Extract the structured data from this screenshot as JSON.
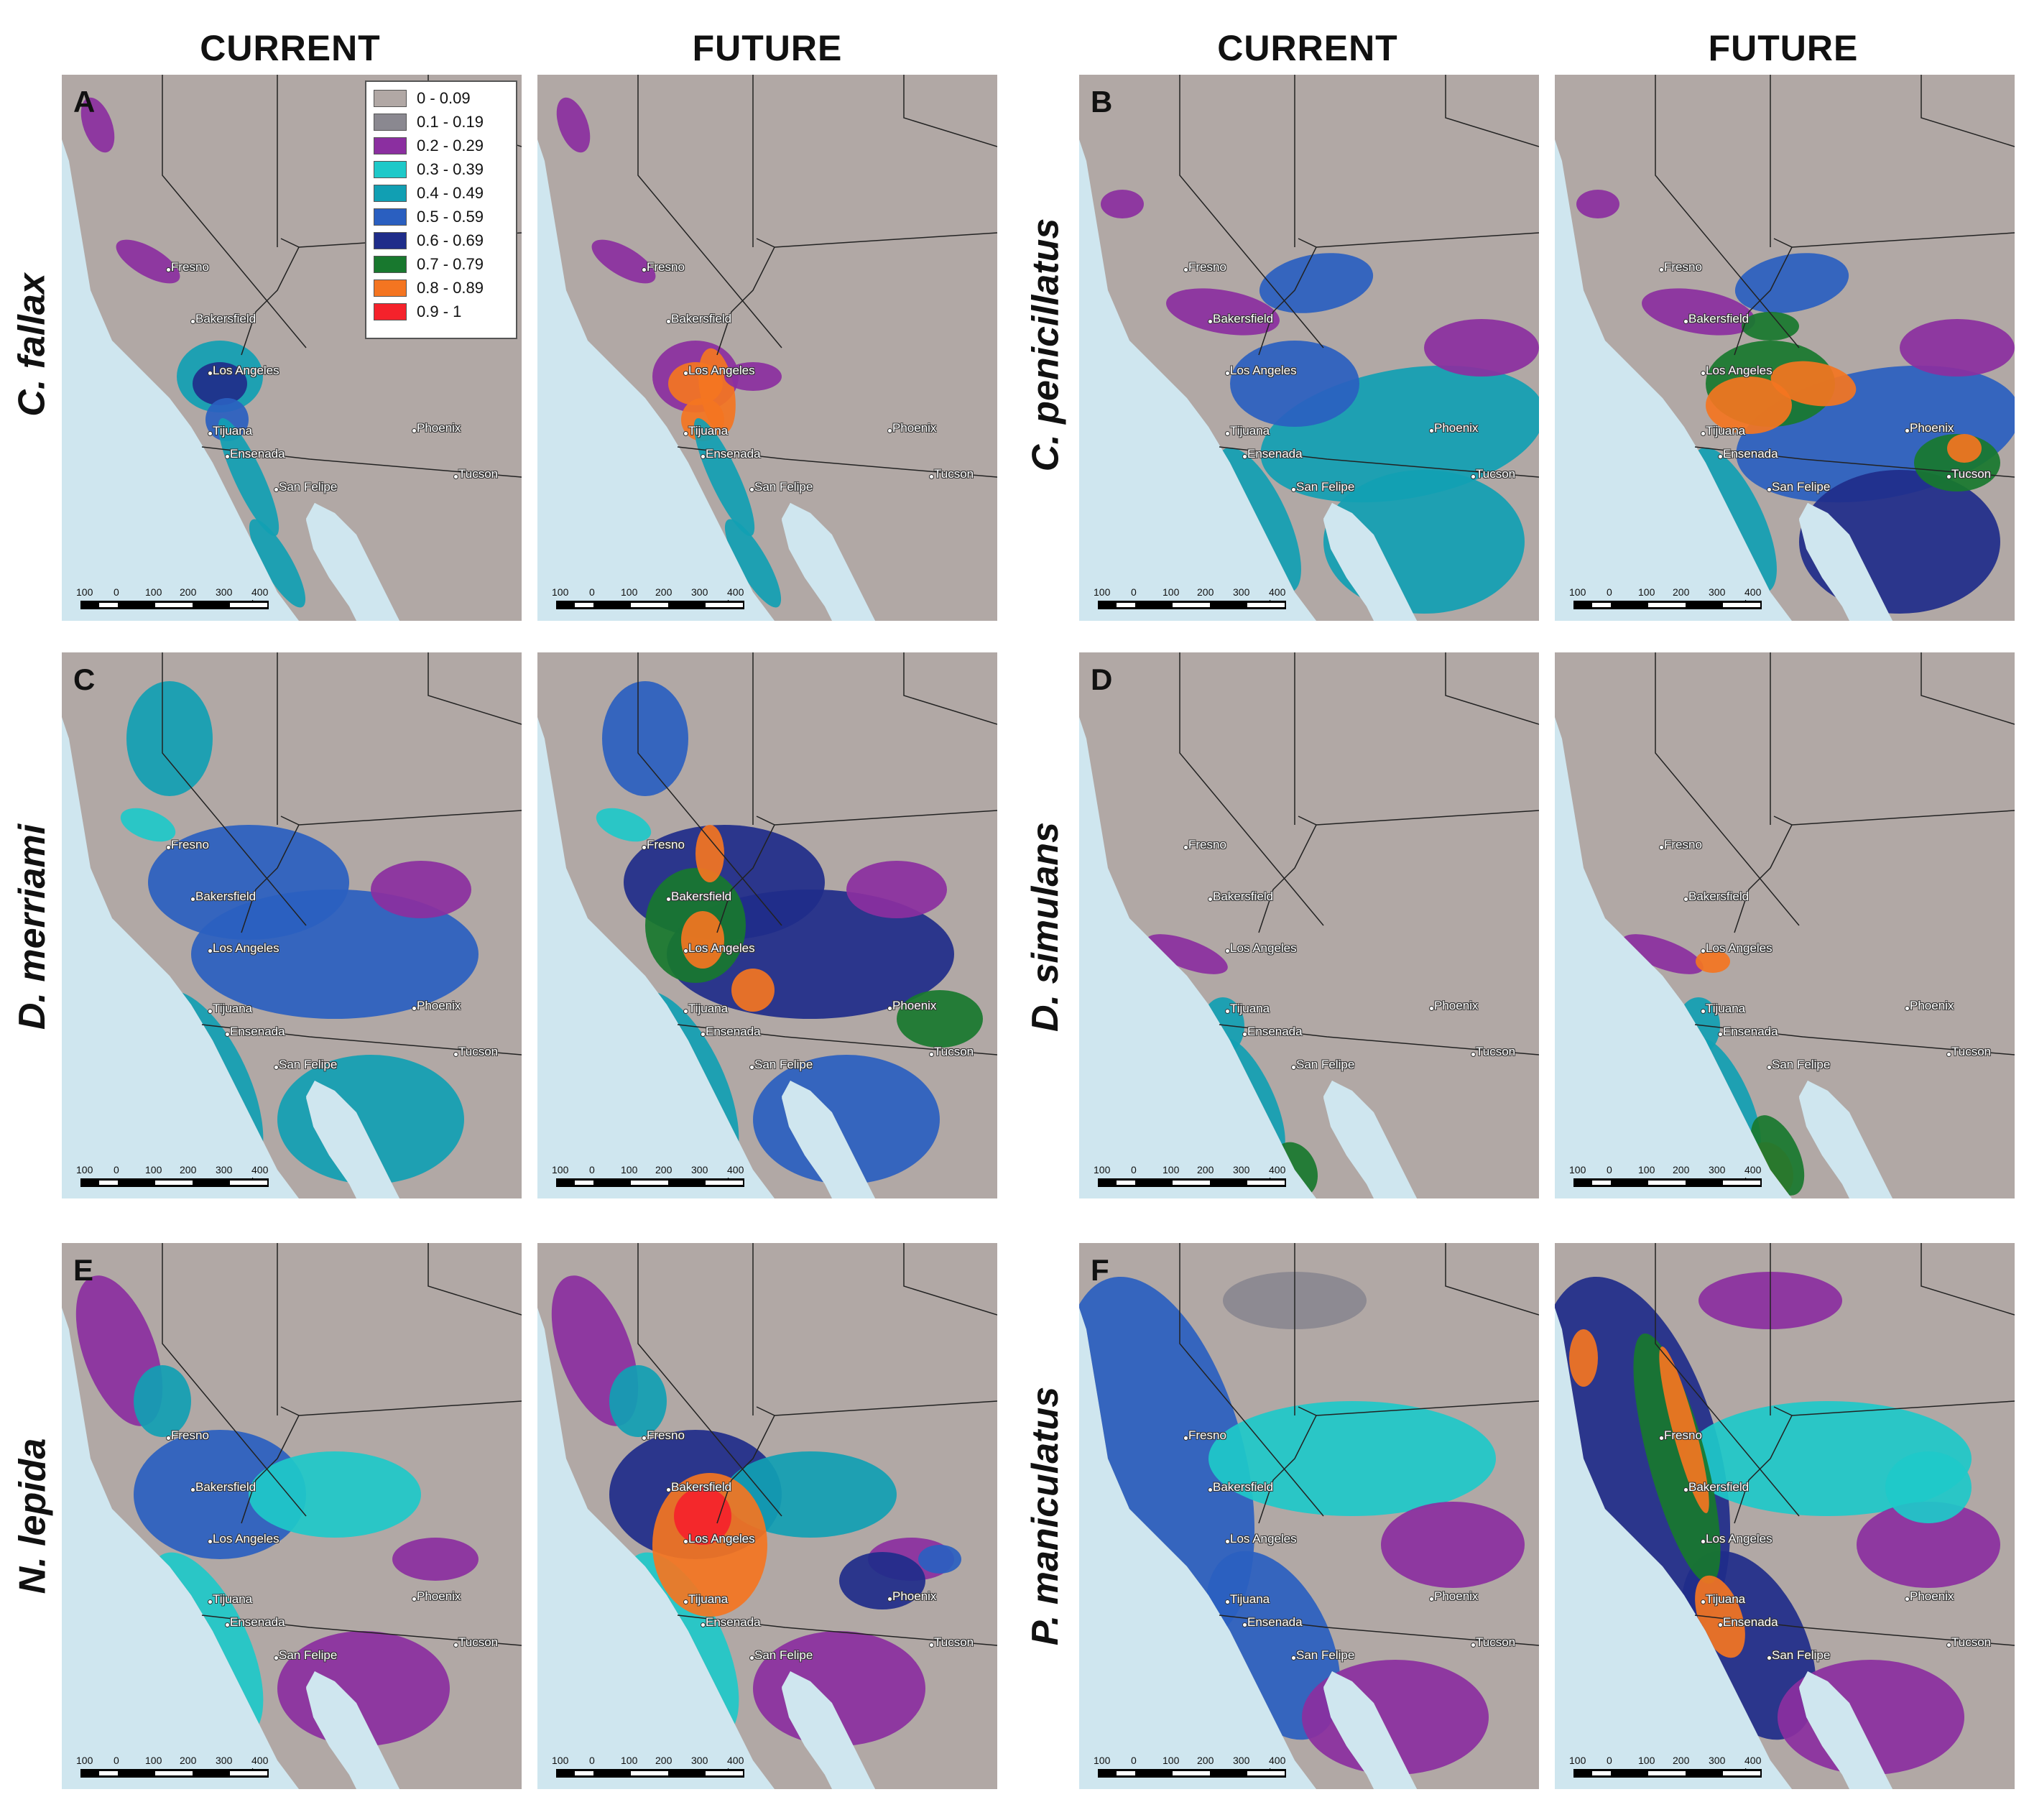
{
  "headers": {
    "current": "CURRENT",
    "future": "FUTURE"
  },
  "species": {
    "c_fallax": "C. fallax",
    "c_penicillatus": "C. penicillatus",
    "d_merriami": "D. merriami",
    "d_simulans": "D. simulans",
    "n_lepida": "N. lepida",
    "p_maniculatus": "P. maniculatus"
  },
  "panel_letters": {
    "A": "A",
    "B": "B",
    "C": "C",
    "D": "D",
    "E": "E",
    "F": "F"
  },
  "cities": {
    "fresno": "Fresno",
    "bakersfield": "Bakersfield",
    "los_angeles": "Los Angeles",
    "phoenix": "Phoenix",
    "tucson": "Tucson",
    "tijuana": "Tijuana",
    "ensenada": "Ensenada",
    "san_felipe": "San Felipe"
  },
  "scale": {
    "t100a": "100",
    "t0": "0",
    "t100": "100",
    "t200": "200",
    "t300": "300",
    "t400": "400 km"
  },
  "legend": [
    {
      "label": "0 - 0.09",
      "color": "#b1a8a5"
    },
    {
      "label": "0.1 - 0.19",
      "color": "#8a8890"
    },
    {
      "label": "0.2 - 0.29",
      "color": "#8b2fa0"
    },
    {
      "label": "0.3 - 0.39",
      "color": "#1ec9c9"
    },
    {
      "label": "0.4 - 0.49",
      "color": "#119fb3"
    },
    {
      "label": "0.5 - 0.59",
      "color": "#2a5fc0"
    },
    {
      "label": "0.6 - 0.69",
      "color": "#1f2d8a"
    },
    {
      "label": "0.7 - 0.79",
      "color": "#18782e"
    },
    {
      "label": "0.8 - 0.89",
      "color": "#f47521"
    },
    {
      "label": "0.9 - 1",
      "color": "#f5222b"
    }
  ],
  "colors": {
    "ocean": "#cfe6ef",
    "land": "#b1a8a5",
    "border": "#222222"
  }
}
